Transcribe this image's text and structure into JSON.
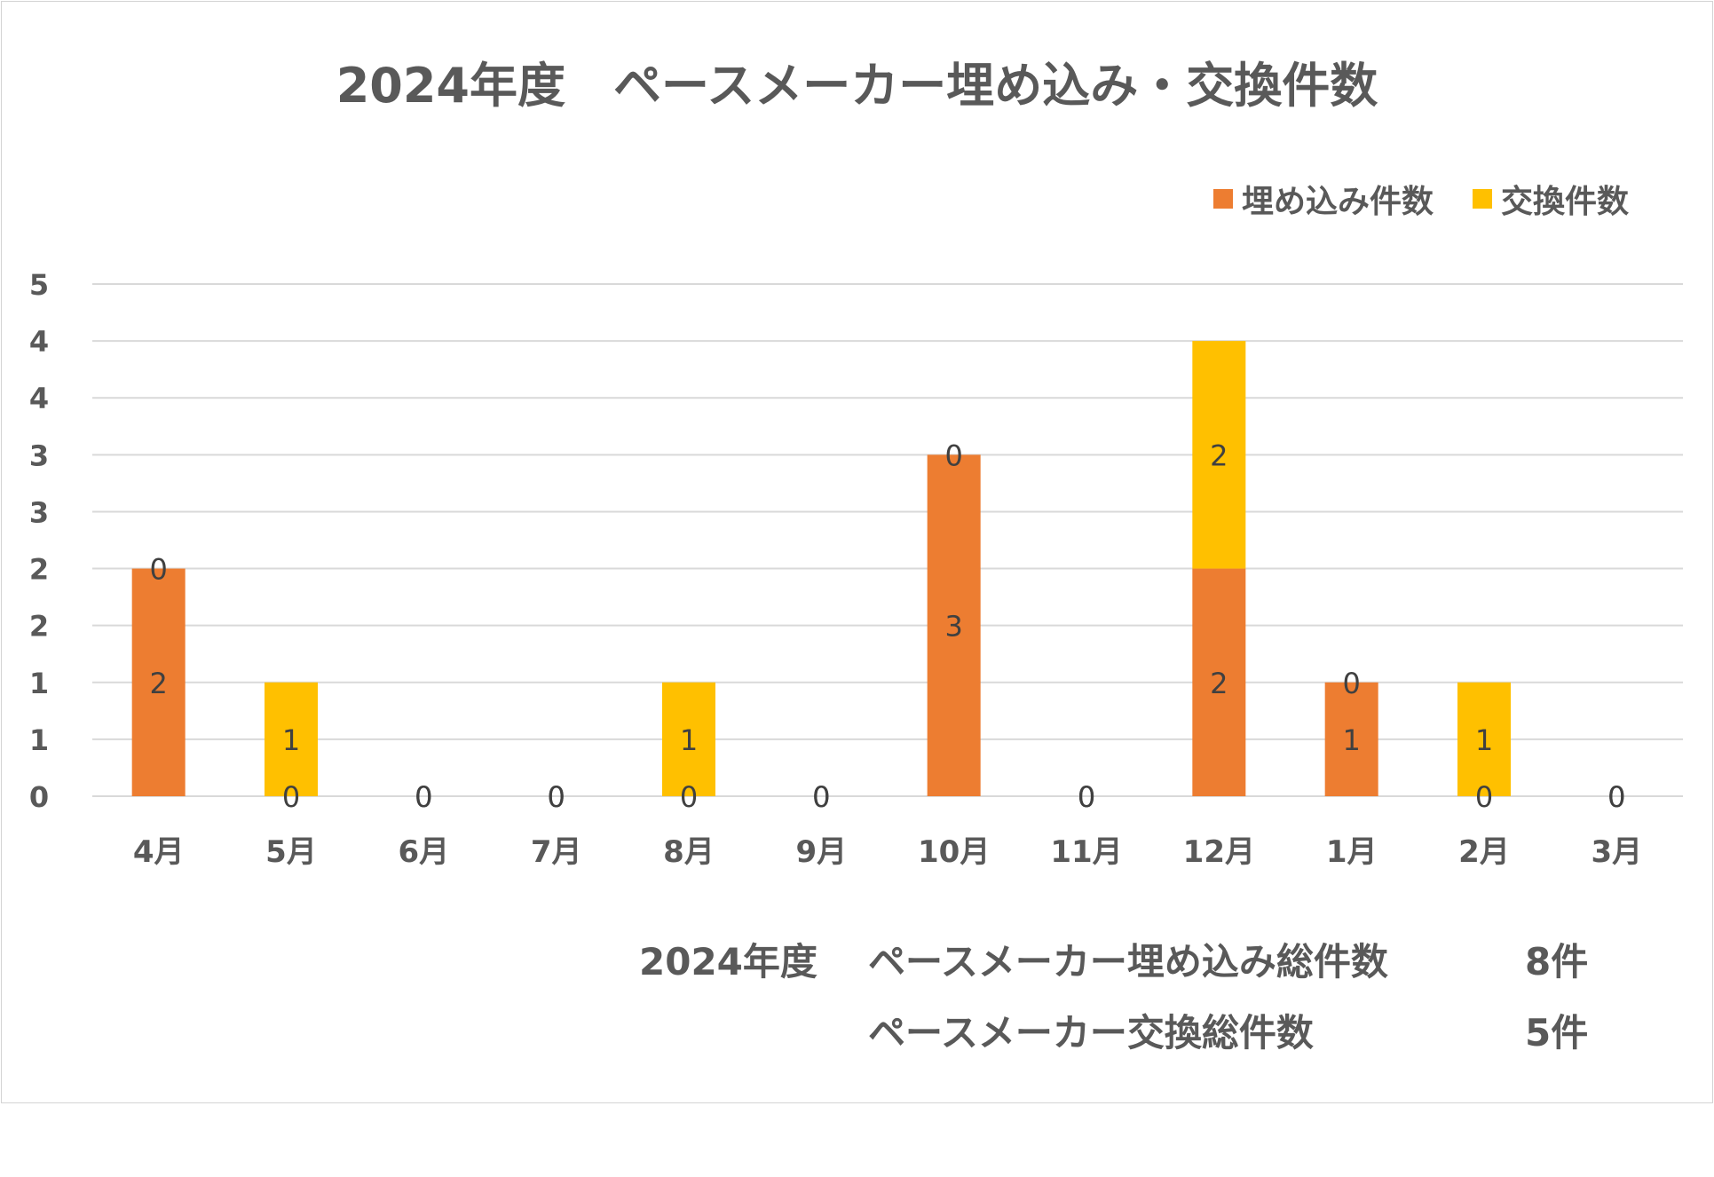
{
  "title": "2024年度　ペースメーカー埋め込み・交換件数",
  "colors": {
    "implant": "#ED7D31",
    "exchange": "#FFC000",
    "grid": "#d9d9d9",
    "text": "#595959"
  },
  "summary": {
    "row1_label_year": "2024年度",
    "row1_label": "ペースメーカー埋め込み総件数",
    "row1_value": "8件",
    "row2_label": "ペースメーカー交換総件数",
    "row2_value": "5件"
  },
  "chart_data": {
    "type": "bar",
    "stacked": true,
    "title": "2024年度　ペースメーカー埋め込み・交換件数",
    "categories": [
      "4月",
      "5月",
      "6月",
      "7月",
      "8月",
      "9月",
      "10月",
      "11月",
      "12月",
      "1月",
      "2月",
      "3月"
    ],
    "series": [
      {
        "name": "埋め込み件数",
        "color": "#ED7D31",
        "values": [
          2,
          0,
          0,
          0,
          0,
          0,
          3,
          0,
          2,
          1,
          0,
          0
        ]
      },
      {
        "name": "交換件数",
        "color": "#FFC000",
        "values": [
          0,
          1,
          0,
          0,
          1,
          0,
          0,
          0,
          2,
          0,
          1,
          0
        ]
      }
    ],
    "y_tick_labels": [
      "0",
      "1",
      "1",
      "2",
      "2",
      "3",
      "3",
      "4",
      "4",
      "5"
    ],
    "ylim": [
      0,
      4.5
    ],
    "grid": true,
    "legend": "top-right"
  }
}
